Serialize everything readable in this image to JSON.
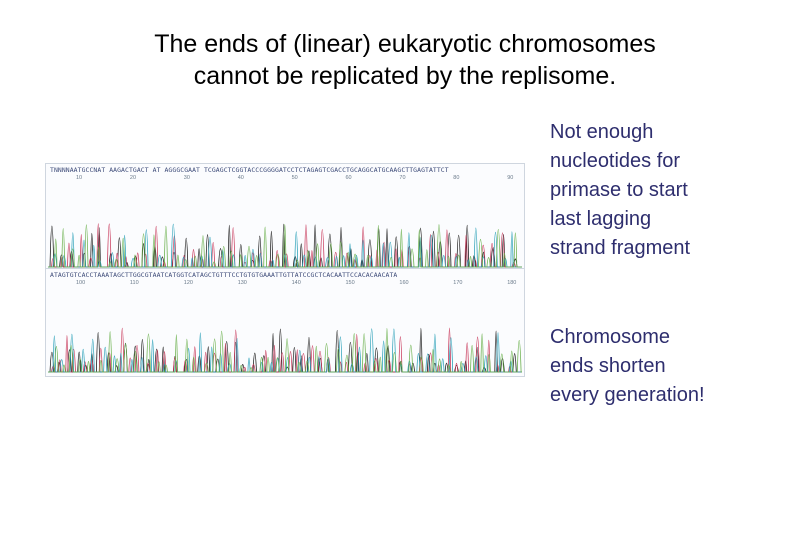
{
  "slide": {
    "title_lines": [
      "The ends of (linear) eukaryotic chromosomes",
      "cannot be replicated by the replisome."
    ],
    "note_1_lines": [
      "Not enough",
      "nucleotides for",
      "primase to start",
      "last lagging",
      "strand fragment"
    ],
    "note_2_lines": [
      "Chromosome",
      "ends shorten",
      "every generation!"
    ]
  },
  "chromatogram": {
    "trace_colors": [
      "#1a1a1a",
      "#c8385a",
      "#2aa0b8",
      "#6ab04c"
    ],
    "panels": [
      {
        "sequence": "TNNNNAATGCCNAT AAGACTGACT AT AGGGCGAAT TCGAGCTCGGTACCCGGGGATCCTCTAGAGTCGACCTGCAGGCATGCAAGCTTGAGTATTCT",
        "ticks": [
          "10",
          "20",
          "30",
          "40",
          "50",
          "60",
          "70",
          "80",
          "90"
        ]
      },
      {
        "sequence": "ATAGTGTCACCTAAATAGCTTGGCGTAATCATGGTCATAGCTGTTTCCTGTGTGAAATTGTTATCCGCTCACAATTCCACACAACATA",
        "ticks": [
          "100",
          "110",
          "120",
          "130",
          "140",
          "150",
          "160",
          "170",
          "180"
        ]
      }
    ]
  }
}
